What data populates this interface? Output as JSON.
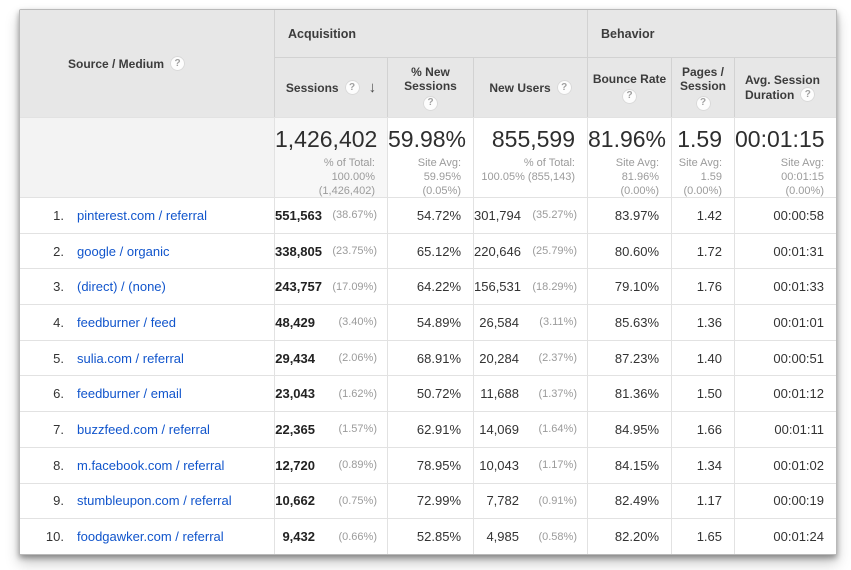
{
  "table": {
    "header": {
      "source_medium": "Source / Medium",
      "acquisition": "Acquisition",
      "behavior": "Behavior",
      "sessions": "Sessions",
      "pct_new_sessions_line1": "% New",
      "pct_new_sessions_line2": "Sessions",
      "new_users": "New Users",
      "bounce_rate": "Bounce Rate",
      "pages_session_line1": "Pages /",
      "pages_session_line2": "Session",
      "avg_duration_line1": "Avg. Session",
      "avg_duration_line2": "Duration",
      "help_glyph": "?",
      "sort_glyph": "↓"
    },
    "summary": {
      "sessions": {
        "value": "1,426,402",
        "sub": [
          "% of Total:",
          "100.00%",
          "(1,426,402)"
        ]
      },
      "pct_new": {
        "value": "59.98%",
        "sub": [
          "Site Avg:",
          "59.95%",
          "(0.05%)"
        ]
      },
      "new_users": {
        "value": "855,599",
        "sub": [
          "% of Total:",
          "100.05% (855,143)"
        ]
      },
      "bounce": {
        "value": "81.96%",
        "sub": [
          "Site Avg:",
          "81.96%",
          "(0.00%)"
        ]
      },
      "pages": {
        "value": "1.59",
        "sub": [
          "Site Avg:",
          "1.59",
          "(0.00%)"
        ]
      },
      "duration": {
        "value": "00:01:15",
        "sub": [
          "Site Avg:",
          "00:01:15",
          "(0.00%)"
        ]
      }
    },
    "rows": [
      {
        "rank": "1.",
        "source": "pinterest.com / referral",
        "sessions": "551,563",
        "sessions_pct": "(38.67%)",
        "new_sessions": "54.72%",
        "new_users": "301,794",
        "new_users_pct": "(35.27%)",
        "bounce": "83.97%",
        "pages": "1.42",
        "duration": "00:00:58"
      },
      {
        "rank": "2.",
        "source": "google / organic",
        "sessions": "338,805",
        "sessions_pct": "(23.75%)",
        "new_sessions": "65.12%",
        "new_users": "220,646",
        "new_users_pct": "(25.79%)",
        "bounce": "80.60%",
        "pages": "1.72",
        "duration": "00:01:31"
      },
      {
        "rank": "3.",
        "source": "(direct) / (none)",
        "sessions": "243,757",
        "sessions_pct": "(17.09%)",
        "new_sessions": "64.22%",
        "new_users": "156,531",
        "new_users_pct": "(18.29%)",
        "bounce": "79.10%",
        "pages": "1.76",
        "duration": "00:01:33"
      },
      {
        "rank": "4.",
        "source": "feedburner / feed",
        "sessions": "48,429",
        "sessions_pct": "(3.40%)",
        "new_sessions": "54.89%",
        "new_users": "26,584",
        "new_users_pct": "(3.11%)",
        "bounce": "85.63%",
        "pages": "1.36",
        "duration": "00:01:01"
      },
      {
        "rank": "5.",
        "source": "sulia.com / referral",
        "sessions": "29,434",
        "sessions_pct": "(2.06%)",
        "new_sessions": "68.91%",
        "new_users": "20,284",
        "new_users_pct": "(2.37%)",
        "bounce": "87.23%",
        "pages": "1.40",
        "duration": "00:00:51"
      },
      {
        "rank": "6.",
        "source": "feedburner / email",
        "sessions": "23,043",
        "sessions_pct": "(1.62%)",
        "new_sessions": "50.72%",
        "new_users": "11,688",
        "new_users_pct": "(1.37%)",
        "bounce": "81.36%",
        "pages": "1.50",
        "duration": "00:01:12"
      },
      {
        "rank": "7.",
        "source": "buzzfeed.com / referral",
        "sessions": "22,365",
        "sessions_pct": "(1.57%)",
        "new_sessions": "62.91%",
        "new_users": "14,069",
        "new_users_pct": "(1.64%)",
        "bounce": "84.95%",
        "pages": "1.66",
        "duration": "00:01:11"
      },
      {
        "rank": "8.",
        "source": "m.facebook.com / referral",
        "sessions": "12,720",
        "sessions_pct": "(0.89%)",
        "new_sessions": "78.95%",
        "new_users": "10,043",
        "new_users_pct": "(1.17%)",
        "bounce": "84.15%",
        "pages": "1.34",
        "duration": "00:01:02"
      },
      {
        "rank": "9.",
        "source": "stumbleupon.com / referral",
        "sessions": "10,662",
        "sessions_pct": "(0.75%)",
        "new_sessions": "72.99%",
        "new_users": "7,782",
        "new_users_pct": "(0.91%)",
        "bounce": "82.49%",
        "pages": "1.17",
        "duration": "00:00:19"
      },
      {
        "rank": "10.",
        "source": "foodgawker.com / referral",
        "sessions": "9,432",
        "sessions_pct": "(0.66%)",
        "new_sessions": "52.85%",
        "new_users": "4,985",
        "new_users_pct": "(0.58%)",
        "bounce": "82.20%",
        "pages": "1.65",
        "duration": "00:01:24"
      }
    ]
  },
  "colors": {
    "link": "#1155cc",
    "header_bg": "#e7e7e7",
    "sorted_column_highlight": "#f7f7f7",
    "summary_blank_bg": "#f3f3f3"
  }
}
